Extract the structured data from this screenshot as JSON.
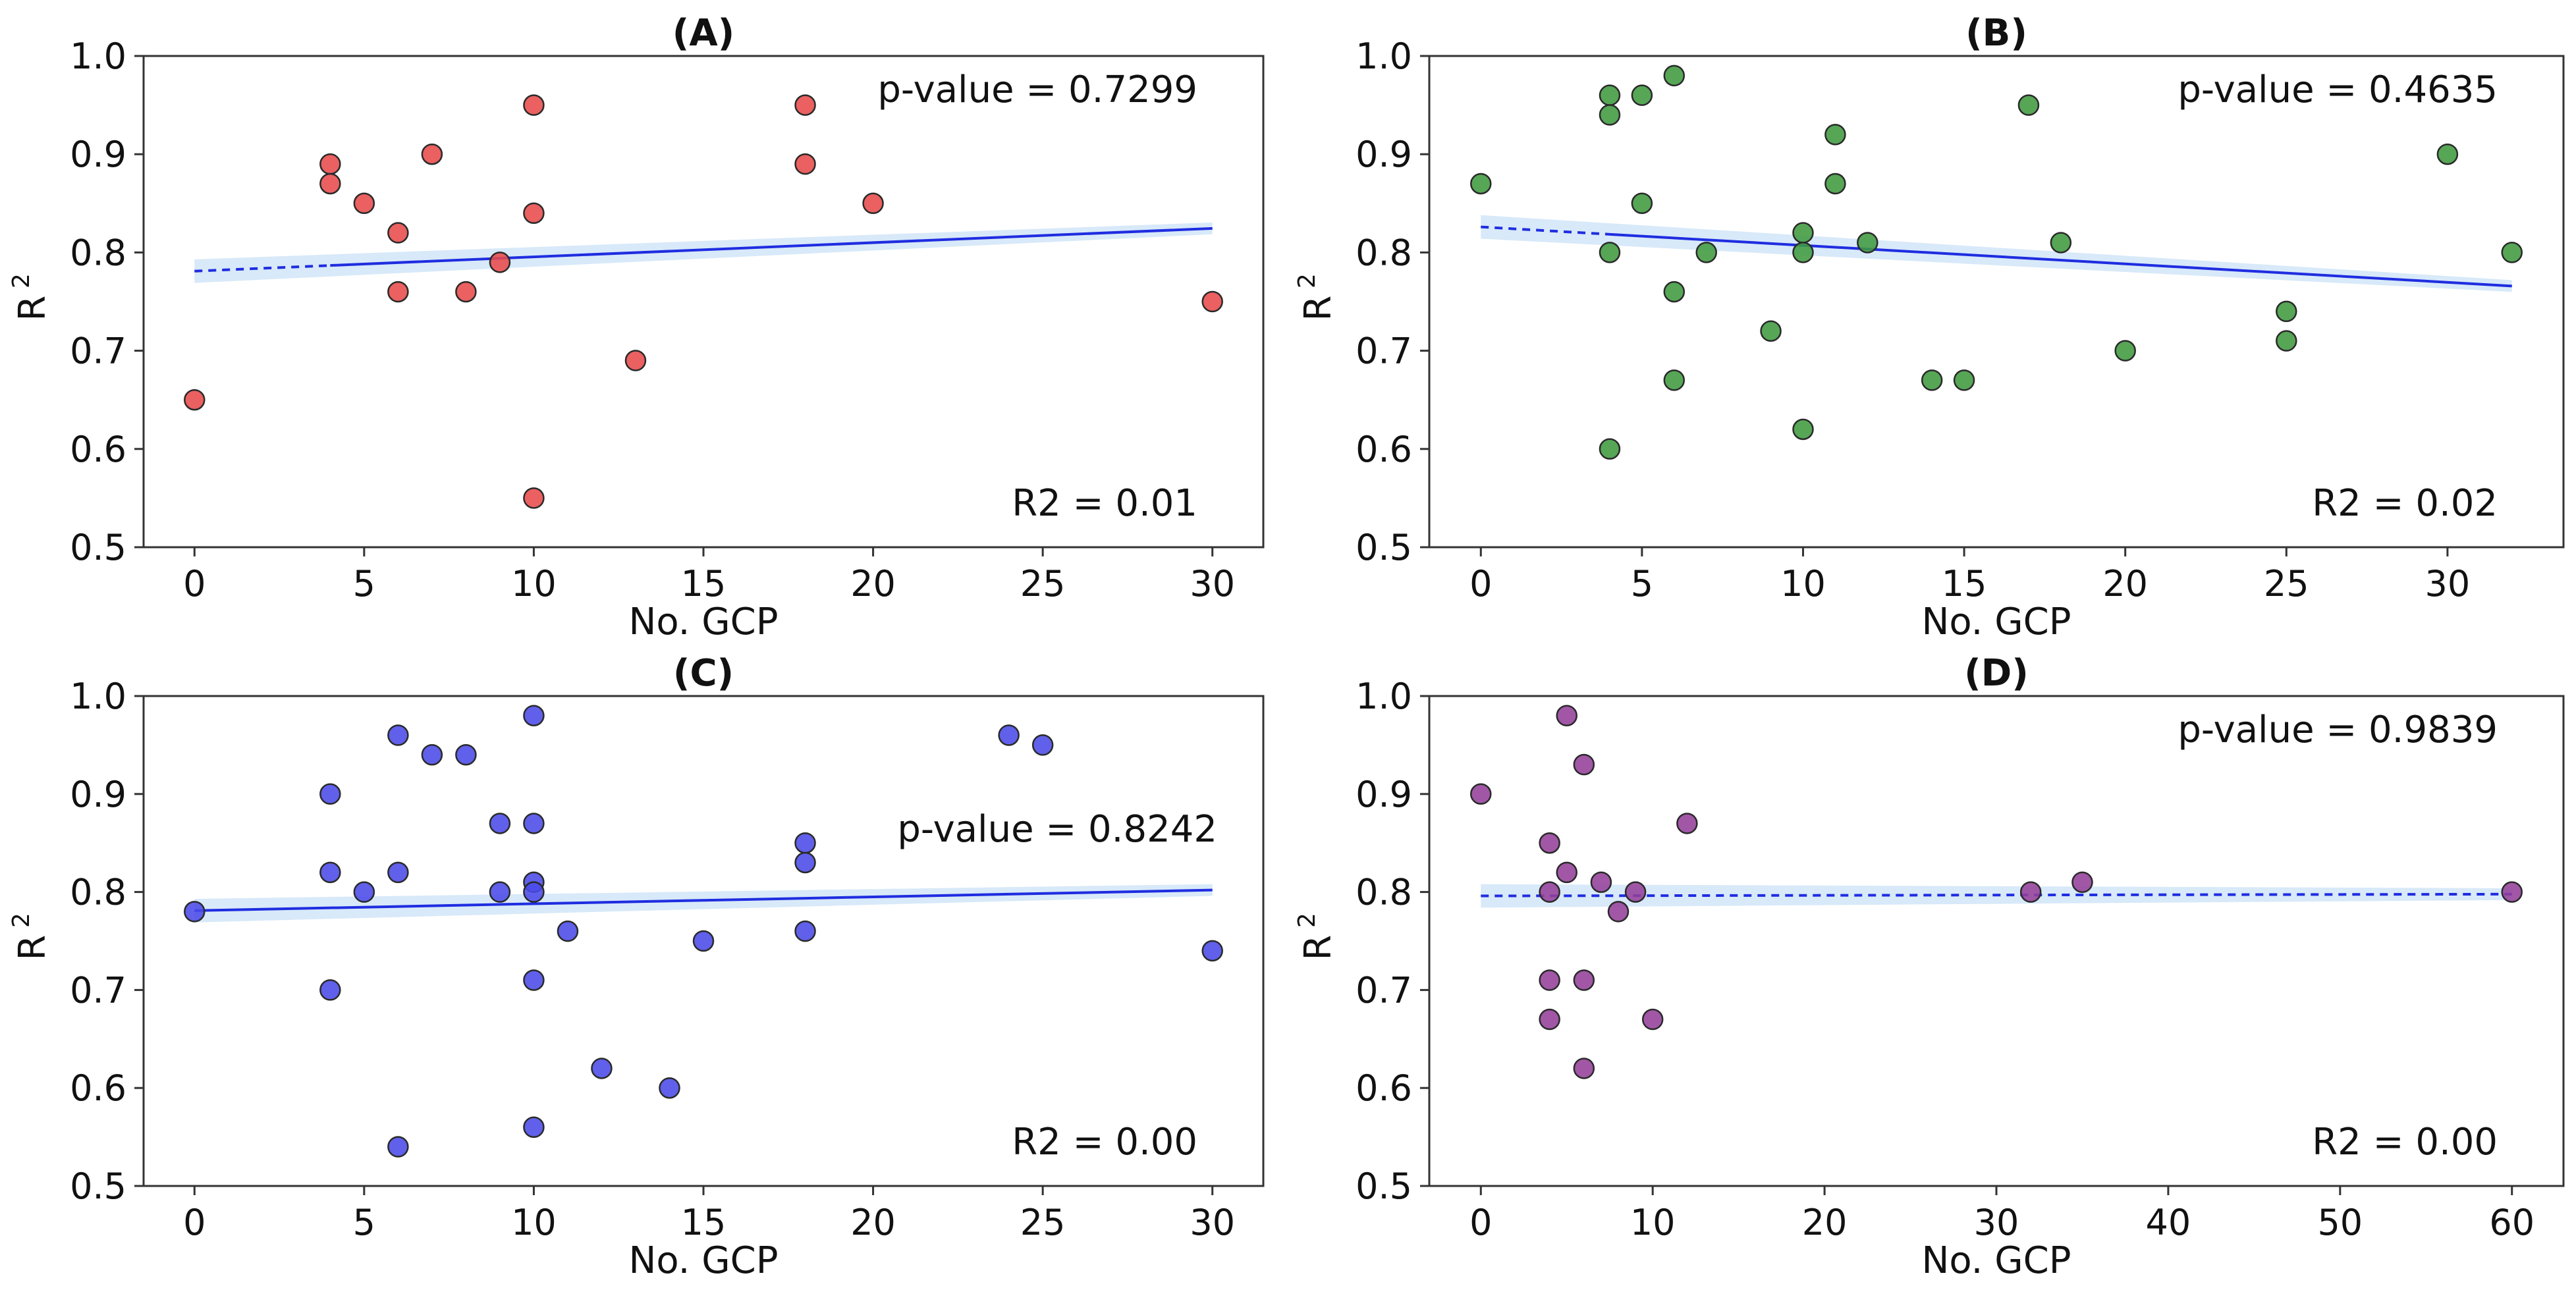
{
  "figure": {
    "layout": "2x2 grid of scatter plots with linear regression fits"
  },
  "chart_data": [
    {
      "type": "scatter",
      "title": "(A)",
      "xlabel": "No. GCP",
      "ylabel": "R",
      "ylabel_sup": "2",
      "xlim": [
        -1.5,
        31.5
      ],
      "ylim": [
        0.5,
        1.0
      ],
      "xticks": [
        0,
        5,
        10,
        15,
        20,
        25,
        30
      ],
      "yticks": [
        0.5,
        0.6,
        0.7,
        0.8,
        0.9,
        1.0
      ],
      "ytick_labels": [
        "0.5",
        "0.6",
        "0.7",
        "0.8",
        "0.9",
        "1.0"
      ],
      "annotations": {
        "pvalue": "p-value = 0.7299",
        "r2": "R2 = 0.01"
      },
      "color": "#e84a4a",
      "x": [
        0,
        4,
        4,
        5,
        6,
        6,
        7,
        8,
        9,
        10,
        10,
        10,
        13,
        18,
        18,
        20,
        30
      ],
      "y": [
        0.65,
        0.89,
        0.87,
        0.85,
        0.82,
        0.76,
        0.9,
        0.76,
        0.79,
        0.95,
        0.84,
        0.55,
        0.69,
        0.95,
        0.89,
        0.85,
        0.75
      ],
      "fit": {
        "intercept": 0.781,
        "slope": 0.00145,
        "dashed_until": 4
      }
    },
    {
      "type": "scatter",
      "title": "(B)",
      "xlabel": "No. GCP",
      "ylabel": "R",
      "ylabel_sup": "2",
      "xlim": [
        -1.6,
        33.6
      ],
      "ylim": [
        0.5,
        1.0
      ],
      "xticks": [
        0,
        5,
        10,
        15,
        20,
        25,
        30
      ],
      "yticks": [
        0.5,
        0.6,
        0.7,
        0.8,
        0.9,
        1.0
      ],
      "ytick_labels": [
        "0.5",
        "0.6",
        "0.7",
        "0.8",
        "0.9",
        "1.0"
      ],
      "annotations": {
        "pvalue": "p-value = 0.4635",
        "r2": "R2 = 0.02"
      },
      "color": "#3f9a3f",
      "x": [
        0,
        4,
        4,
        4,
        4,
        5,
        5,
        6,
        6,
        6,
        7,
        9,
        10,
        10,
        10,
        11,
        11,
        12,
        14,
        15,
        17,
        18,
        20,
        25,
        25,
        30,
        32
      ],
      "y": [
        0.87,
        0.96,
        0.94,
        0.8,
        0.6,
        0.96,
        0.85,
        0.98,
        0.76,
        0.67,
        0.8,
        0.72,
        0.82,
        0.8,
        0.62,
        0.92,
        0.87,
        0.81,
        0.67,
        0.67,
        0.95,
        0.81,
        0.7,
        0.74,
        0.71,
        0.9,
        0.8
      ],
      "fit": {
        "intercept": 0.826,
        "slope": -0.00188,
        "dashed_until": 4
      }
    },
    {
      "type": "scatter",
      "title": "(C)",
      "xlabel": "No. GCP",
      "ylabel": "R",
      "ylabel_sup": "2",
      "xlim": [
        -1.5,
        31.5
      ],
      "ylim": [
        0.5,
        1.0
      ],
      "xticks": [
        0,
        5,
        10,
        15,
        20,
        25,
        30
      ],
      "yticks": [
        0.5,
        0.6,
        0.7,
        0.8,
        0.9,
        1.0
      ],
      "ytick_labels": [
        "0.5",
        "0.6",
        "0.7",
        "0.8",
        "0.9",
        "1.0"
      ],
      "annotations": {
        "pvalue": "p-value = 0.8242",
        "r2": "R2 = 0.00"
      },
      "color": "#4a4ae8",
      "x": [
        0,
        4,
        4,
        4,
        5,
        6,
        6,
        6,
        7,
        8,
        9,
        9,
        10,
        10,
        10,
        10,
        10,
        10,
        11,
        12,
        14,
        15,
        18,
        18,
        18,
        24,
        25,
        30
      ],
      "y": [
        0.78,
        0.9,
        0.82,
        0.7,
        0.8,
        0.96,
        0.82,
        0.54,
        0.94,
        0.94,
        0.87,
        0.8,
        0.98,
        0.87,
        0.81,
        0.8,
        0.71,
        0.56,
        0.76,
        0.62,
        0.6,
        0.75,
        0.85,
        0.83,
        0.76,
        0.96,
        0.95,
        0.74
      ],
      "fit": {
        "intercept": 0.781,
        "slope": 0.0007,
        "dashed_until": 0
      }
    },
    {
      "type": "scatter",
      "title": "(D)",
      "xlabel": "No. GCP",
      "ylabel": "R",
      "ylabel_sup": "2",
      "xlim": [
        -3.0,
        63.0
      ],
      "ylim": [
        0.5,
        1.0
      ],
      "xticks": [
        0,
        10,
        20,
        30,
        40,
        50,
        60
      ],
      "yticks": [
        0.5,
        0.6,
        0.7,
        0.8,
        0.9,
        1.0
      ],
      "ytick_labels": [
        "0.5",
        "0.6",
        "0.7",
        "0.8",
        "0.9",
        "1.0"
      ],
      "annotations": {
        "pvalue": "p-value = 0.9839",
        "r2": "R2 = 0.00"
      },
      "color": "#94409a",
      "x": [
        0,
        4,
        4,
        4,
        4,
        5,
        5,
        6,
        6,
        6,
        7,
        8,
        9,
        10,
        12,
        32,
        35,
        60
      ],
      "y": [
        0.9,
        0.85,
        0.8,
        0.71,
        0.67,
        0.98,
        0.82,
        0.93,
        0.71,
        0.62,
        0.81,
        0.78,
        0.8,
        0.67,
        0.87,
        0.8,
        0.81,
        0.8
      ],
      "fit": {
        "intercept": 0.796,
        "slope": 3e-05,
        "dashed_until": 60
      }
    }
  ]
}
